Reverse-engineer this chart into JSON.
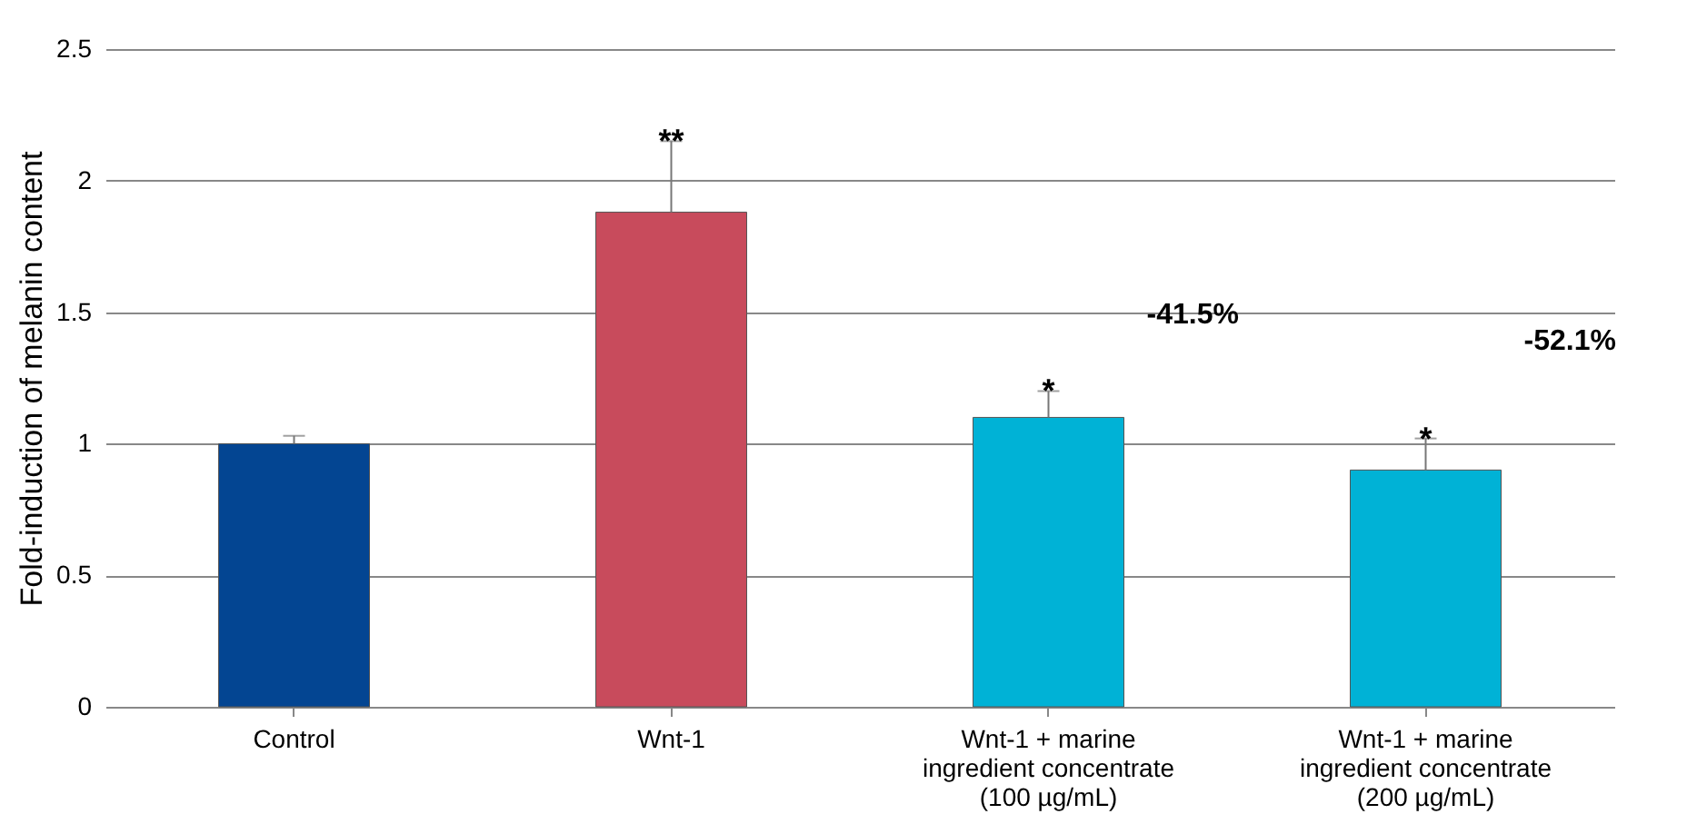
{
  "chart_data": {
    "type": "bar",
    "ylabel": "Fold-induction of melanin content",
    "categories": [
      "Control",
      "Wnt-1",
      "Wnt-1 + marine ingredient concentrate (100 µg/mL)",
      "Wnt-1 + marine ingredient concentrate (200 µg/mL)"
    ],
    "values": [
      1.0,
      1.88,
      1.1,
      0.9
    ],
    "colors": [
      "#034592",
      "#c84b5c",
      "#00b2d6",
      "#00b2d6"
    ],
    "errors": [
      [
        1.0,
        1.03
      ],
      [
        1.88,
        2.15
      ],
      [
        1.1,
        1.2
      ],
      [
        0.9,
        1.02
      ]
    ],
    "ylim": [
      0,
      2.5
    ],
    "yticks": [
      0,
      0.5,
      1,
      1.5,
      2,
      2.5
    ],
    "grid": "y",
    "annotations": [
      {
        "text": "**",
        "x": "Wnt-1",
        "y": 2.15
      },
      {
        "text": "*",
        "x": "Wnt-1 + marine ingredient concentrate (100 µg/mL)",
        "y": 1.2
      },
      {
        "text": "*",
        "x": "Wnt-1 + marine ingredient concentrate (200 µg/mL)",
        "y": 1.02
      },
      "-41.5%",
      "-52.1%"
    ]
  }
}
